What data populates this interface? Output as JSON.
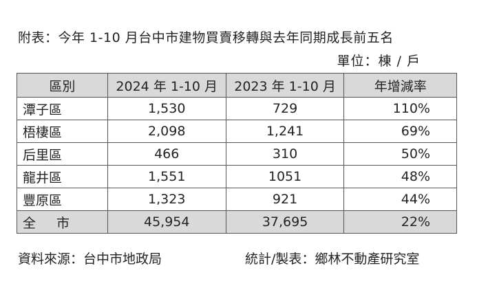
{
  "title": "附表：今年 1-10 月台中市建物買賣移轉與去年同期成長前五名",
  "unit": "單位：棟 / 戶",
  "table": {
    "headers": [
      "區別",
      "2024 年 1-10 月",
      "2023 年 1-10 月",
      "年增減率"
    ],
    "rows": [
      {
        "district": "潭子區",
        "y2024": "1,530",
        "y2023": "729",
        "rate": "110%"
      },
      {
        "district": "梧棲區",
        "y2024": "2,098",
        "y2023": "1,241",
        "rate": "69%"
      },
      {
        "district": "后里區",
        "y2024": "466",
        "y2023": "310",
        "rate": "50%"
      },
      {
        "district": "龍井區",
        "y2024": "1,551",
        "y2023": "1051",
        "rate": "48%"
      },
      {
        "district": "豐原區",
        "y2024": "1,323",
        "y2023": "921",
        "rate": "44%"
      }
    ],
    "total": {
      "district": "全市",
      "y2024": "45,954",
      "y2023": "37,695",
      "rate": "22%"
    }
  },
  "footer": {
    "source": "資料來源：台中市地政局",
    "credit": "統計/製表：鄉林不動產研究室"
  },
  "colors": {
    "header_bg": "#d9d9d9",
    "total_bg": "#d9d9d9",
    "border": "#555555",
    "text": "#222222"
  }
}
